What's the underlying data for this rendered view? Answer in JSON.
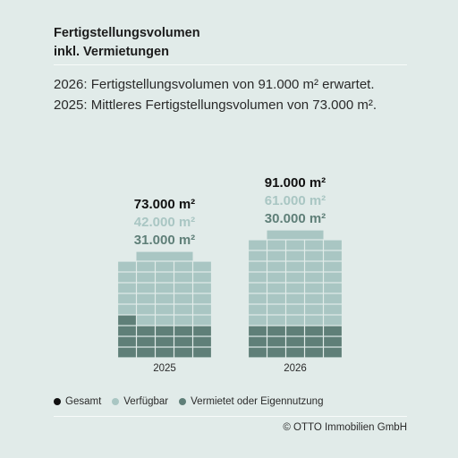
{
  "title": {
    "line1": "Fertigstellungsvolumen",
    "line2": "inkl. Vermietungen"
  },
  "subtitle": {
    "line1": "2026: Fertigstellungsvolumen von 91.000 m² erwartet.",
    "line2": "2025: Mittleres Fertigstellungsvolumen von 73.000 m²."
  },
  "chart_data": {
    "type": "bar",
    "categories": [
      "2025",
      "2026"
    ],
    "series": [
      {
        "name": "Gesamt",
        "values": [
          73000,
          91000
        ],
        "labels": [
          "73.000 m²",
          "91.000 m²"
        ]
      },
      {
        "name": "Verfügbar",
        "values": [
          42000,
          61000
        ],
        "labels": [
          "42.000 m²",
          "61.000 m²"
        ]
      },
      {
        "name": "Vermietet oder Eigennutzung",
        "values": [
          31000,
          30000
        ],
        "labels": [
          "31.000 m²",
          "30.000 m²"
        ]
      }
    ]
  },
  "legend": [
    {
      "label": "Gesamt",
      "color": "#111111"
    },
    {
      "label": "Verfügbar",
      "color": "#a9c6c3"
    },
    {
      "label": "Vermietet oder Eigennutzung",
      "color": "#5f7f78"
    }
  ],
  "colors": {
    "background": "#e1ebe9",
    "available": "#a9c6c3",
    "rented": "#5f7f78",
    "total": "#111111"
  },
  "credit": "© OTTO Immobilien GmbH"
}
